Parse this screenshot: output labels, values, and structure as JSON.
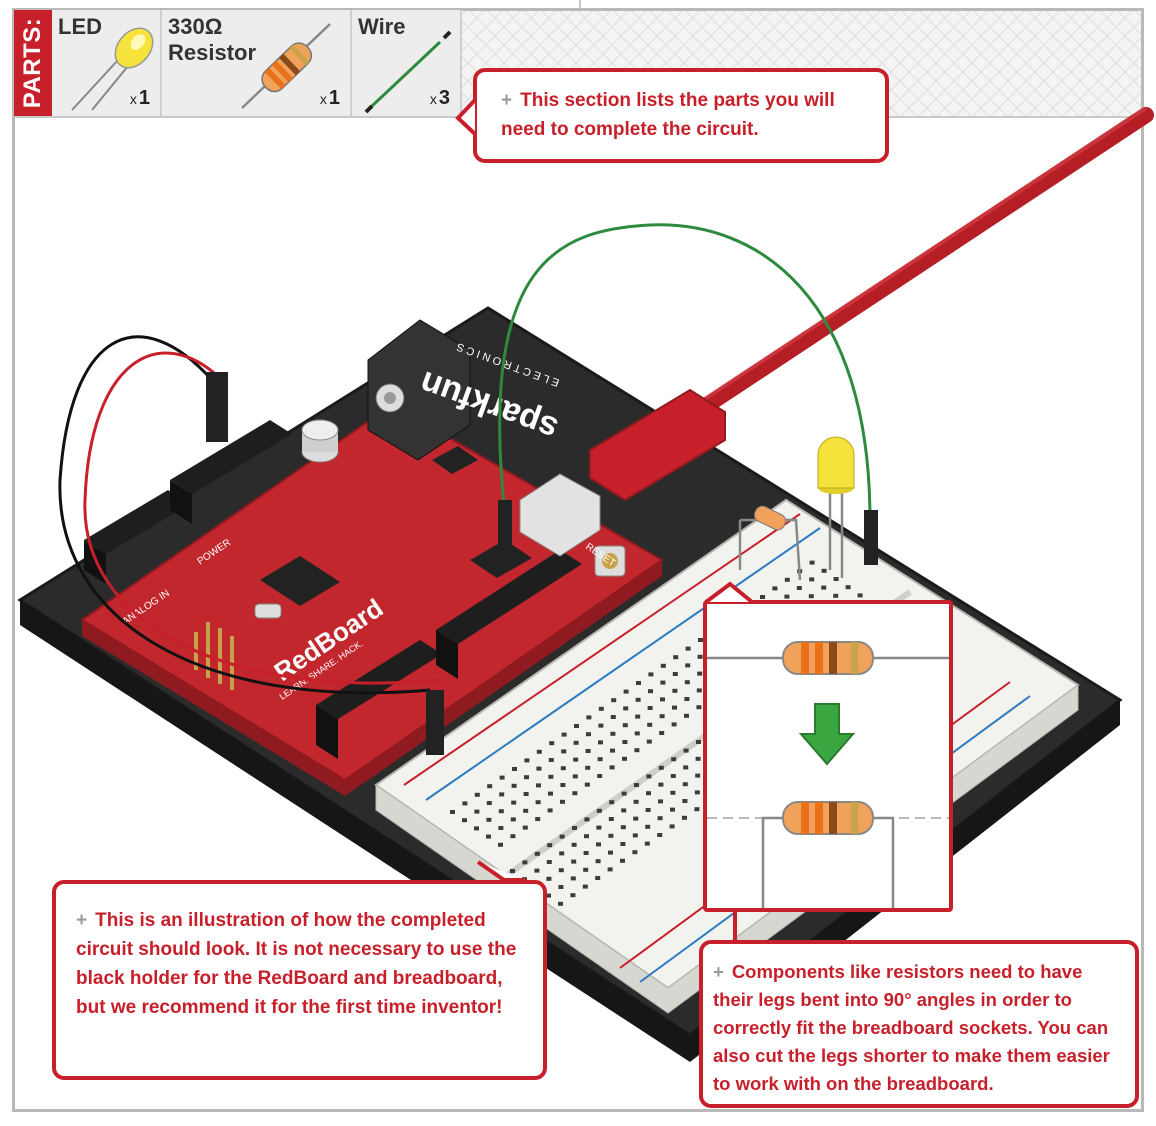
{
  "parts_label": "PARTS:",
  "parts": [
    {
      "name": "LED",
      "qty_prefix": "x",
      "qty": "1"
    },
    {
      "name": "330Ω\nResistor",
      "qty_prefix": "x",
      "qty": "1"
    },
    {
      "name": "Wire",
      "qty_prefix": "x",
      "qty": "3"
    }
  ],
  "callouts": {
    "parts_note": {
      "bullet": "+",
      "text": "This section lists the parts you will need to complete the circuit."
    },
    "illustration_note": {
      "bullet": "+",
      "text": "This is an illustration of how the completed circuit should look. It is not necessary to use the black holder for the RedBoard and breadboard, but we recommend it for the first time inventor!"
    },
    "resistor_note": {
      "bullet": "+",
      "text": "Components like resistors need to have their legs bent into 90° angles in order to correctly fit the breadboard sockets. You can also cut the legs shorter to make them easier to work with on the breadboard."
    }
  },
  "board_labels": {
    "board_name": "RedBoard",
    "brand": "sparkfun",
    "brand_sub": "ELECTRONICS",
    "power_header": "POWER",
    "analog_header": "ANALOG IN",
    "reset": "RESET",
    "slogan": "LEARN. SHARE. HACK."
  },
  "colors": {
    "accent_red": "#c8202a",
    "board_red": "#c1272d",
    "holder_black": "#2b2b2b",
    "breadboard": "#f2f2ef",
    "wire_green": "#2e8b3e",
    "arrow_green": "#3aa63f",
    "led_yellow": "#f5e23a"
  }
}
